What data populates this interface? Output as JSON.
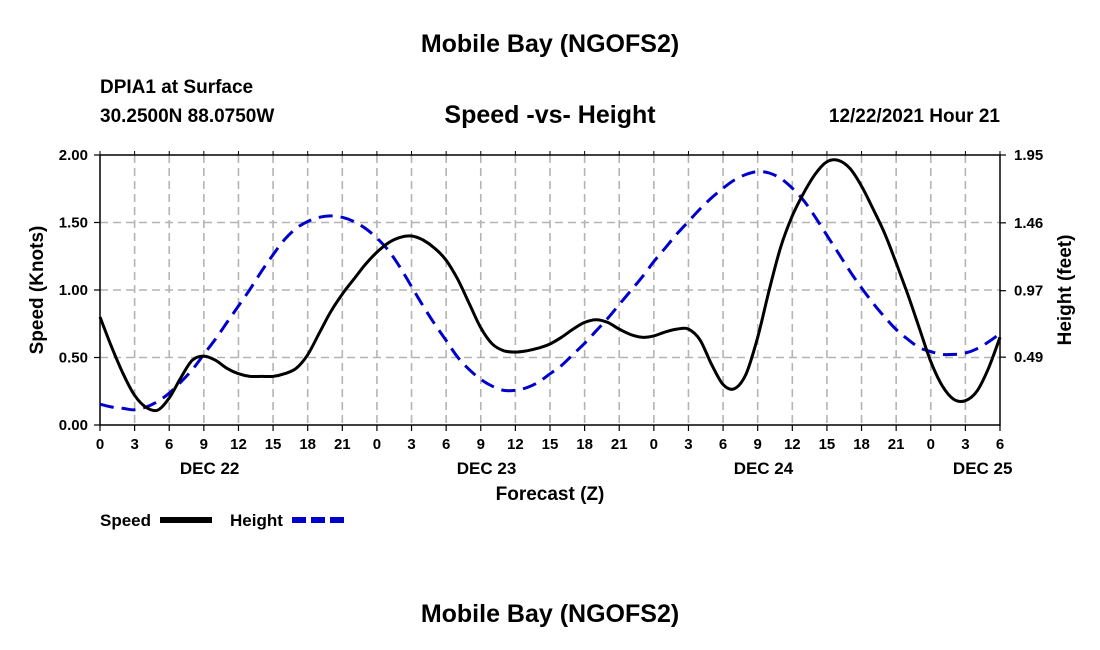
{
  "header": {
    "main_title": "Mobile Bay (NGOFS2)",
    "station": "DPIA1 at Surface",
    "coords": "30.2500N  88.0750W",
    "datetime": "12/22/2021 Hour 21",
    "bottom_title": "Mobile Bay (NGOFS2)"
  },
  "chart_data": {
    "type": "line",
    "title": "Speed -vs- Height",
    "xlabel": "Forecast (Z)",
    "ylabel_left": "Speed (Knots)",
    "ylabel_right": "Height (feet)",
    "xlim": [
      0,
      78
    ],
    "ylim_left": [
      0,
      2.0
    ],
    "ylim_right": [
      0,
      1.95
    ],
    "x_ticks": [
      0,
      3,
      6,
      9,
      12,
      15,
      18,
      21,
      24,
      27,
      30,
      33,
      36,
      39,
      42,
      45,
      48,
      51,
      54,
      57,
      60,
      63,
      66,
      69,
      72,
      75,
      78
    ],
    "x_tick_labels": [
      "0",
      "3",
      "6",
      "9",
      "12",
      "15",
      "18",
      "21",
      "0",
      "3",
      "6",
      "9",
      "12",
      "15",
      "18",
      "21",
      "0",
      "3",
      "6",
      "9",
      "12",
      "15",
      "18",
      "21",
      "0",
      "3",
      "6"
    ],
    "day_labels": [
      {
        "x": 9.5,
        "label": "DEC 22"
      },
      {
        "x": 33.5,
        "label": "DEC 23"
      },
      {
        "x": 57.5,
        "label": "DEC 24"
      },
      {
        "x": 76.5,
        "label": "DEC 25"
      }
    ],
    "y_left_ticks": [
      0,
      0.5,
      1.0,
      1.5,
      2.0
    ],
    "y_left_tick_labels": [
      "0.00",
      "0.50",
      "1.00",
      "1.50",
      "2.00"
    ],
    "y_right_ticks": [
      0.49,
      0.97,
      1.46,
      1.95
    ],
    "y_right_tick_labels": [
      "0.49",
      "0.97",
      "1.46",
      "1.95"
    ],
    "grid": true,
    "legend": [
      {
        "name": "Speed",
        "color": "#000000",
        "style": "solid"
      },
      {
        "name": "Height",
        "color": "#0000cc",
        "style": "dashed"
      }
    ],
    "series": [
      {
        "name": "Speed",
        "axis": "left",
        "color": "#000000",
        "x": [
          0,
          1,
          2,
          3,
          4,
          5,
          6,
          7,
          8,
          9,
          10,
          11,
          12,
          13,
          14,
          15,
          16,
          17,
          18,
          19,
          20,
          21,
          22,
          23,
          24,
          25,
          26,
          27,
          28,
          29,
          30,
          31,
          32,
          33,
          34,
          35,
          36,
          37,
          38,
          39,
          40,
          41,
          42,
          43,
          44,
          45,
          46,
          47,
          48,
          49,
          50,
          51,
          52,
          53,
          54,
          55,
          56,
          57,
          58,
          59,
          60,
          61,
          62,
          63,
          64,
          65,
          66,
          67,
          68,
          69,
          70,
          71,
          72,
          73,
          74,
          75,
          76,
          77,
          78
        ],
        "values": [
          0.8,
          0.58,
          0.38,
          0.22,
          0.13,
          0.11,
          0.2,
          0.35,
          0.48,
          0.51,
          0.48,
          0.42,
          0.38,
          0.36,
          0.36,
          0.36,
          0.38,
          0.42,
          0.52,
          0.68,
          0.84,
          0.97,
          1.08,
          1.19,
          1.28,
          1.35,
          1.39,
          1.4,
          1.37,
          1.31,
          1.22,
          1.08,
          0.9,
          0.72,
          0.6,
          0.55,
          0.54,
          0.55,
          0.57,
          0.6,
          0.65,
          0.71,
          0.76,
          0.78,
          0.76,
          0.71,
          0.67,
          0.65,
          0.66,
          0.69,
          0.71,
          0.71,
          0.63,
          0.45,
          0.3,
          0.27,
          0.38,
          0.65,
          1.0,
          1.32,
          1.55,
          1.72,
          1.86,
          1.95,
          1.96,
          1.9,
          1.77,
          1.6,
          1.42,
          1.2,
          0.97,
          0.72,
          0.47,
          0.29,
          0.19,
          0.18,
          0.25,
          0.42,
          0.65
        ]
      },
      {
        "name": "Height",
        "axis": "right",
        "color": "#0000cc",
        "x": [
          0,
          1,
          2,
          3,
          4,
          5,
          6,
          7,
          8,
          9,
          10,
          11,
          12,
          13,
          14,
          15,
          16,
          17,
          18,
          19,
          20,
          21,
          22,
          23,
          24,
          25,
          26,
          27,
          28,
          29,
          30,
          31,
          32,
          33,
          34,
          35,
          36,
          37,
          38,
          39,
          40,
          41,
          42,
          43,
          44,
          45,
          46,
          47,
          48,
          49,
          50,
          51,
          52,
          53,
          54,
          55,
          56,
          57,
          58,
          59,
          60,
          61,
          62,
          63,
          64,
          65,
          66,
          67,
          68,
          69,
          70,
          71,
          72,
          73,
          74,
          75,
          76,
          77,
          78
        ],
        "values": [
          0.15,
          0.13,
          0.12,
          0.11,
          0.13,
          0.17,
          0.23,
          0.31,
          0.4,
          0.51,
          0.62,
          0.74,
          0.86,
          0.98,
          1.11,
          1.23,
          1.34,
          1.42,
          1.47,
          1.5,
          1.51,
          1.5,
          1.47,
          1.42,
          1.35,
          1.26,
          1.14,
          1.0,
          0.86,
          0.73,
          0.61,
          0.49,
          0.4,
          0.33,
          0.28,
          0.25,
          0.25,
          0.27,
          0.31,
          0.37,
          0.43,
          0.51,
          0.59,
          0.68,
          0.77,
          0.87,
          0.97,
          1.07,
          1.18,
          1.28,
          1.38,
          1.47,
          1.56,
          1.64,
          1.71,
          1.77,
          1.81,
          1.83,
          1.82,
          1.78,
          1.71,
          1.62,
          1.5,
          1.37,
          1.24,
          1.11,
          0.99,
          0.88,
          0.78,
          0.69,
          0.62,
          0.56,
          0.53,
          0.51,
          0.51,
          0.52,
          0.55,
          0.6,
          0.66
        ]
      }
    ]
  }
}
